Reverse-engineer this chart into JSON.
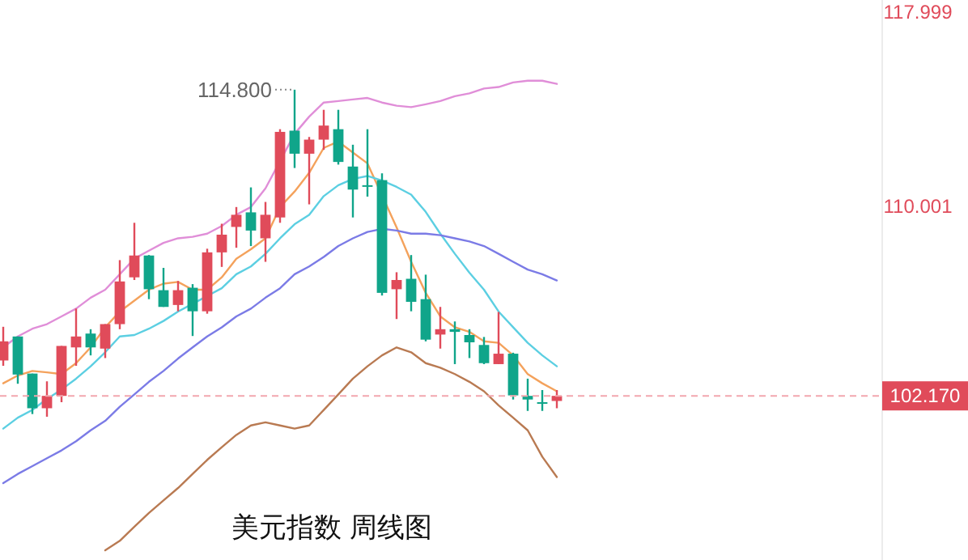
{
  "chart_data": {
    "type": "candlestick",
    "title": "美元指数 周线图",
    "categories": [
      null,
      null,
      null,
      null,
      null,
      null,
      null,
      null,
      null,
      null,
      null,
      null,
      null,
      null,
      null,
      null,
      null,
      null,
      null,
      null,
      null,
      null,
      null,
      null,
      null,
      null,
      null,
      null,
      null,
      null,
      null,
      null,
      null,
      null,
      null,
      null,
      null,
      null,
      null
    ],
    "ohlc": [
      [
        103.63,
        105.02,
        103.41,
        104.42
      ],
      [
        104.62,
        104.62,
        102.67,
        103.05
      ],
      [
        103.09,
        103.09,
        101.42,
        101.66
      ],
      [
        101.66,
        102.77,
        101.31,
        102.17
      ],
      [
        102.17,
        104.23,
        101.91,
        104.23
      ],
      [
        104.17,
        105.77,
        103.41,
        104.62
      ],
      [
        104.74,
        104.92,
        103.84,
        104.17
      ],
      [
        104.12,
        105.13,
        103.73,
        105.13
      ],
      [
        105.13,
        107.77,
        104.92,
        106.89
      ],
      [
        107.06,
        109.31,
        106.95,
        107.96
      ],
      [
        107.96,
        107.98,
        106.16,
        106.57
      ],
      [
        106.53,
        107.45,
        105.84,
        105.84
      ],
      [
        105.92,
        106.91,
        105.66,
        106.53
      ],
      [
        106.63,
        106.78,
        104.64,
        105.66
      ],
      [
        105.66,
        108.24,
        105.56,
        108.09
      ],
      [
        108.09,
        109.27,
        107.49,
        108.82
      ],
      [
        109.14,
        109.96,
        108.28,
        109.64
      ],
      [
        109.74,
        110.77,
        108.35,
        108.99
      ],
      [
        108.67,
        110.17,
        107.7,
        109.64
      ],
      [
        109.53,
        113.17,
        109.31,
        113.06
      ],
      [
        113.11,
        114.8,
        111.57,
        112.16
      ],
      [
        112.16,
        112.85,
        110.07,
        112.74
      ],
      [
        112.74,
        113.97,
        112.32,
        113.32
      ],
      [
        113.17,
        113.97,
        111.71,
        111.82
      ],
      [
        111.63,
        112.53,
        109.53,
        110.68
      ],
      [
        110.86,
        113.17,
        110.39,
        110.81
      ],
      [
        111.07,
        111.35,
        106.31,
        106.42
      ],
      [
        106.57,
        107.27,
        105.34,
        106.95
      ],
      [
        107.0,
        107.98,
        105.66,
        106.05
      ],
      [
        106.16,
        107.17,
        104.42,
        104.49
      ],
      [
        104.7,
        105.84,
        104.12,
        104.92
      ],
      [
        104.92,
        105.24,
        103.48,
        104.81
      ],
      [
        104.68,
        104.92,
        103.73,
        104.38
      ],
      [
        104.27,
        104.6,
        103.48,
        103.52
      ],
      [
        103.48,
        105.63,
        103.48,
        103.91
      ],
      [
        103.91,
        103.95,
        102.02,
        102.19
      ],
      [
        102.17,
        102.88,
        101.55,
        102.02
      ],
      [
        101.89,
        102.41,
        101.55,
        101.91
      ],
      [
        101.96,
        102.41,
        101.66,
        102.17
      ]
    ],
    "colors": [
      "#e04b5a",
      "#10a58a",
      "#10a58a",
      "#e04b5a",
      "#e04b5a",
      "#e04b5a",
      "#10a58a",
      "#e04b5a",
      "#e04b5a",
      "#e04b5a",
      "#10a58a",
      "#10a58a",
      "#e04b5a",
      "#10a58a",
      "#e04b5a",
      "#e04b5a",
      "#e04b5a",
      "#10a58a",
      "#e04b5a",
      "#e04b5a",
      "#10a58a",
      "#e04b5a",
      "#e04b5a",
      "#10a58a",
      "#10a58a",
      "#10a58a",
      "#10a58a",
      "#e04b5a",
      "#10a58a",
      "#10a58a",
      "#e04b5a",
      "#10a58a",
      "#10a58a",
      "#10a58a",
      "#e04b5a",
      "#10a58a",
      "#10a58a",
      "#10a58a",
      "#e04b5a"
    ],
    "series": [
      {
        "type": "line",
        "color": "#f4a25c",
        "values": [
          102.69,
          103.01,
          103.2,
          103.14,
          103.07,
          103.52,
          104.17,
          105.0,
          105.65,
          106.1,
          106.55,
          106.8,
          106.87,
          106.55,
          106.55,
          107.06,
          107.83,
          108.22,
          108.67,
          109.96,
          110.6,
          111.37,
          112.4,
          112.66,
          112.21,
          111.76,
          null,
          109.12,
          107.7,
          106.42,
          105.45,
          105.0,
          104.81,
          104.42,
          104.36,
          103.84,
          103.07,
          102.69,
          102.36
        ]
      },
      {
        "type": "line",
        "color": "#e08ed8",
        "values": [
          104.17,
          104.62,
          104.94,
          105.13,
          105.45,
          105.77,
          106.22,
          106.55,
          107.19,
          107.83,
          108.16,
          108.48,
          108.67,
          108.73,
          108.86,
          109.18,
          109.64,
          109.96,
          110.73,
          null,
          112.98,
          113.69,
          114.27,
          114.33,
          114.4,
          114.46,
          114.27,
          114.14,
          114.08,
          114.2,
          114.33,
          114.53,
          114.65,
          114.85,
          114.91,
          115.1,
          115.17,
          115.17,
          115.04
        ]
      },
      {
        "type": "line",
        "color": "#5ccfe2",
        "values": [
          100.82,
          101.27,
          101.59,
          102.04,
          102.43,
          102.88,
          103.39,
          103.97,
          104.62,
          104.68,
          104.94,
          105.26,
          105.65,
          105.97,
          106.29,
          106.61,
          107.19,
          107.51,
          108.03,
          108.67,
          109.25,
          109.64,
          110.41,
          110.86,
          111.12,
          111.24,
          111.05,
          110.79,
          110.47,
          109.76,
          108.86,
          108.03,
          107.25,
          106.55,
          105.65,
          105.0,
          104.36,
          103.84,
          103.39
        ]
      },
      {
        "type": "line",
        "color": "#7b7be6",
        "values": [
          98.57,
          98.95,
          99.27,
          99.6,
          99.92,
          100.3,
          100.75,
          101.14,
          101.72,
          102.23,
          102.75,
          103.2,
          103.71,
          104.17,
          104.62,
          105.0,
          105.45,
          105.77,
          106.22,
          106.61,
          107.19,
          107.51,
          107.9,
          108.35,
          108.67,
          108.93,
          109.06,
          108.99,
          108.86,
          108.86,
          108.8,
          108.67,
          108.54,
          108.35,
          108.03,
          107.7,
          107.38,
          107.19,
          106.93
        ]
      },
      {
        "type": "line",
        "color": "#b97a52",
        "values": [
          null,
          null,
          null,
          null,
          null,
          null,
          null,
          95.8,
          96.19,
          96.77,
          97.34,
          97.86,
          98.37,
          98.95,
          99.53,
          100.05,
          100.56,
          100.95,
          101.08,
          100.95,
          100.82,
          100.95,
          101.59,
          102.23,
          102.88,
          103.39,
          103.84,
          104.17,
          103.97,
          103.52,
          103.33,
          103.07,
          102.75,
          102.36,
          101.78,
          101.27,
          100.75,
          99.66,
          98.82
        ]
      }
    ],
    "ylim": [
      95.4,
      118.5
    ],
    "yticks": [
      117.999,
      110.001
    ],
    "tick_labels": "y",
    "ref_lines": [
      {
        "axis": "y",
        "value": 102.17,
        "label": "102.170",
        "color": "#f2a7ae",
        "line_style": "dashed"
      }
    ],
    "annotations": [
      "114.800"
    ]
  }
}
